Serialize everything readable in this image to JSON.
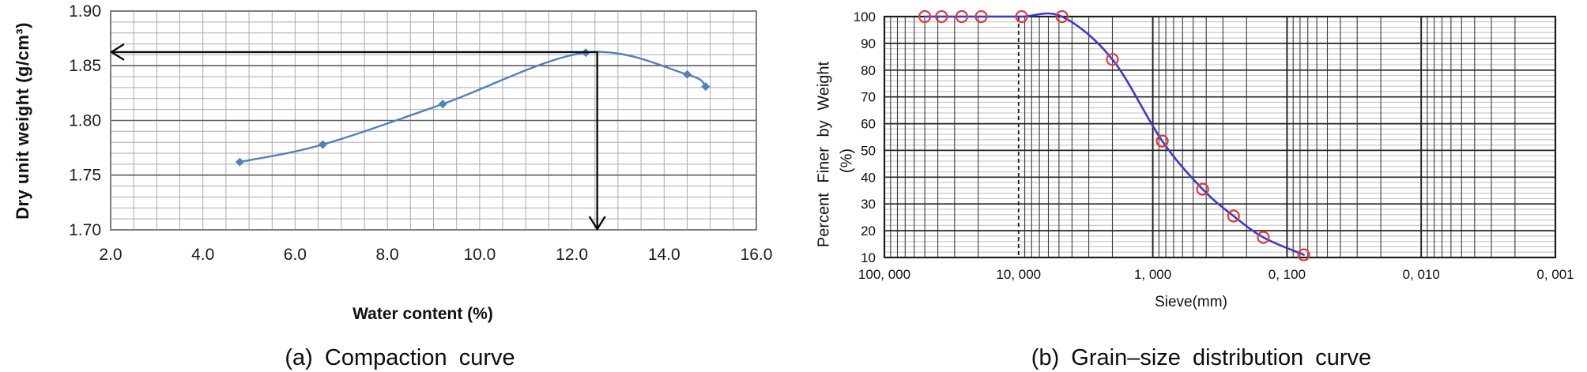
{
  "figure": {
    "background": "#ffffff"
  },
  "chart_data": [
    {
      "id": "compaction",
      "type": "line",
      "title": "(a) Compaction curve",
      "xlabel": "Water content (%)",
      "ylabel": "Dry unit weight (g/cm³)",
      "xlim": [
        2.0,
        16.0
      ],
      "ylim": [
        1.7,
        1.9
      ],
      "x_ticks": [
        {
          "label": "2.0",
          "value": 2.0
        },
        {
          "label": "4.0",
          "value": 4.0
        },
        {
          "label": "6.0",
          "value": 6.0
        },
        {
          "label": "8.0",
          "value": 8.0
        },
        {
          "label": "10.0",
          "value": 10.0
        },
        {
          "label": "12.0",
          "value": 12.0
        },
        {
          "label": "14.0",
          "value": 14.0
        },
        {
          "label": "16.0",
          "value": 16.0
        }
      ],
      "y_ticks": [
        {
          "label": "1.70",
          "value": 1.7
        },
        {
          "label": "1.75",
          "value": 1.75
        },
        {
          "label": "1.80",
          "value": 1.8
        },
        {
          "label": "1.85",
          "value": 1.85
        },
        {
          "label": "1.90",
          "value": 1.9
        }
      ],
      "grid": {
        "x_minor_step": 0.5,
        "y_minor_step": 0.01,
        "minor_color": "#ababab",
        "major_color": "#5e5e5e"
      },
      "series": [
        {
          "name": "compaction curve",
          "color": "#4f81bd",
          "marker": "diamond",
          "points": [
            [
              4.8,
              1.762
            ],
            [
              6.6,
              1.778
            ],
            [
              9.2,
              1.815
            ],
            [
              12.3,
              1.862
            ],
            [
              14.5,
              1.842
            ],
            [
              14.9,
              1.831
            ]
          ]
        }
      ],
      "annotations": {
        "optimum_water_content": 12.55,
        "max_dry_unit_weight": 1.8625,
        "arrow_color": "#0d0d0d"
      }
    },
    {
      "id": "grain-size",
      "type": "line",
      "title": "(b) Grain–size distribution curve",
      "xlabel": "Sieve(mm)",
      "ylabel": "Percent Finer by Weight",
      "ylabel_unit": "(%)",
      "x_scale": "log-descending",
      "xlim": [
        100,
        0.001
      ],
      "ylim": [
        10,
        100
      ],
      "x_ticks": [
        {
          "label": "100, 000",
          "value": 100
        },
        {
          "label": "10, 000",
          "value": 10
        },
        {
          "label": "1, 000",
          "value": 1
        },
        {
          "label": "0, 100",
          "value": 0.1
        },
        {
          "label": "0, 010",
          "value": 0.01
        },
        {
          "label": "0, 001",
          "value": 0.001
        }
      ],
      "y_ticks": [
        {
          "label": "100",
          "value": 100
        },
        {
          "label": "90",
          "value": 90
        },
        {
          "label": "80",
          "value": 80
        },
        {
          "label": "70",
          "value": 70
        },
        {
          "label": "60",
          "value": 60
        },
        {
          "label": "50",
          "value": 50
        },
        {
          "label": "40",
          "value": 40
        },
        {
          "label": "30",
          "value": 30
        },
        {
          "label": "20",
          "value": 20
        },
        {
          "label": "10",
          "value": 10
        }
      ],
      "grid": {
        "y_minor_step": 2,
        "log_minor_digits": [
          2,
          3,
          4,
          5,
          6,
          7,
          8,
          9
        ],
        "dashed_decade_value": 10,
        "minor_color": "#bdbdbd",
        "major_color": "#1f1f1f"
      },
      "series": [
        {
          "name": "grain-size distribution",
          "color": "#3a3ad0",
          "marker": "open-circle",
          "marker_color": "#e23a3a",
          "points": [
            [
              50,
              100
            ],
            [
              37.5,
              100
            ],
            [
              26.5,
              100
            ],
            [
              19,
              100
            ],
            [
              9.5,
              100
            ],
            [
              4.75,
              100
            ],
            [
              2.0,
              84
            ],
            [
              0.85,
              53.5
            ],
            [
              0.425,
              35.5
            ],
            [
              0.25,
              25.5
            ],
            [
              0.15,
              17.5
            ],
            [
              0.075,
              11
            ]
          ]
        }
      ]
    }
  ]
}
